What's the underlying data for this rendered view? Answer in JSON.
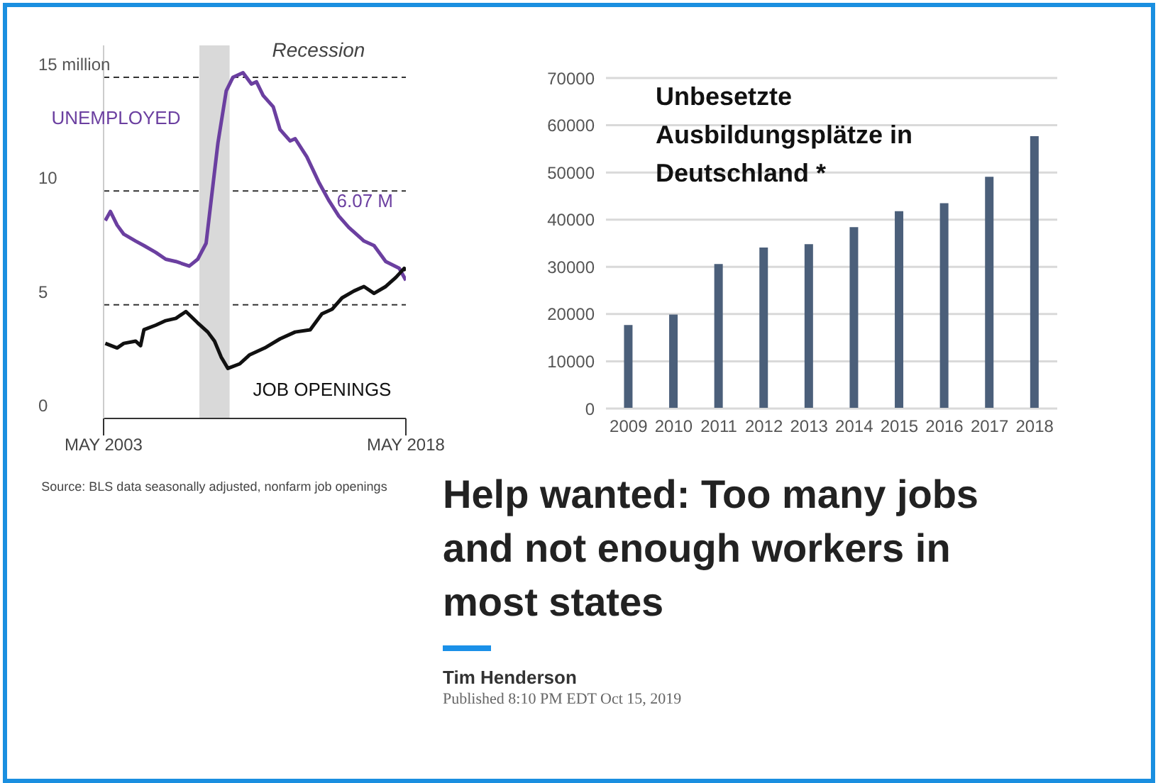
{
  "chart_data": [
    {
      "type": "line",
      "xlim": [
        "2003-05",
        "2018-05"
      ],
      "xticks": [
        {
          "value": "2003-05",
          "label": "MAY 2003"
        },
        {
          "value": "2018-05",
          "label": "MAY 2018"
        }
      ],
      "ylim": [
        0,
        16.4
      ],
      "yticks": [
        0,
        5,
        10,
        {
          "value": 15,
          "label": "15 million"
        }
      ],
      "grid": "y",
      "line_style": "solid",
      "series": [
        {
          "name": "UNEMPLOYED",
          "color": "#6b3fa0",
          "x": [
            "2003-06",
            "2003-09",
            "2004-01",
            "2004-05",
            "2004-12",
            "2005-05",
            "2005-12",
            "2006-06",
            "2006-12",
            "2007-08",
            "2008-01",
            "2008-06",
            "2008-09",
            "2009-01",
            "2009-06",
            "2009-10",
            "2010-04",
            "2010-09",
            "2010-12",
            "2011-04",
            "2011-10",
            "2012-02",
            "2012-08",
            "2012-11",
            "2013-06",
            "2014-01",
            "2014-07",
            "2015-01",
            "2015-07",
            "2016-04",
            "2016-10",
            "2017-05",
            "2018-01",
            "2018-05"
          ],
          "values": [
            8.7,
            9.1,
            8.5,
            8.1,
            7.8,
            7.6,
            7.3,
            7.0,
            6.9,
            6.7,
            7.0,
            7.7,
            9.6,
            12.1,
            14.4,
            15.0,
            15.2,
            14.7,
            14.8,
            14.2,
            13.7,
            12.7,
            12.2,
            12.3,
            11.5,
            10.4,
            9.6,
            8.9,
            8.4,
            7.8,
            7.6,
            6.9,
            6.6,
            6.07
          ]
        },
        {
          "name": "JOB OPENINGS",
          "color": "#111111",
          "x": [
            "2003-06",
            "2004-01",
            "2004-05",
            "2004-12",
            "2005-03",
            "2005-05",
            "2005-12",
            "2006-06",
            "2006-12",
            "2007-06",
            "2008-01",
            "2008-07",
            "2008-11",
            "2009-03",
            "2009-07",
            "2010-02",
            "2010-08",
            "2011-05",
            "2012-02",
            "2012-11",
            "2013-08",
            "2014-03",
            "2014-09",
            "2015-03",
            "2015-10",
            "2016-04",
            "2016-10",
            "2017-05",
            "2017-11",
            "2018-04",
            "2018-05"
          ],
          "values": [
            3.3,
            3.1,
            3.3,
            3.4,
            3.2,
            3.9,
            4.1,
            4.3,
            4.4,
            4.7,
            4.2,
            3.8,
            3.4,
            2.7,
            2.2,
            2.4,
            2.8,
            3.1,
            3.5,
            3.8,
            3.9,
            4.6,
            4.8,
            5.3,
            5.6,
            5.8,
            5.5,
            5.8,
            6.2,
            6.6,
            6.5
          ]
        }
      ],
      "bands": [
        {
          "axis": "x",
          "from": "2008-02",
          "to": "2009-08",
          "label": "Recession",
          "color": "#d9d9d9"
        }
      ],
      "annotations": [
        "6.07 M",
        "Source:  BLS data seasonally adjusted, nonfarm job openings"
      ]
    },
    {
      "type": "bar",
      "title": "Unbesetzte Ausbildungsplätze in Deutschland *",
      "categories": [
        "2009",
        "2010",
        "2011",
        "2012",
        "2013",
        "2014",
        "2015",
        "2016",
        "2017",
        "2018"
      ],
      "values": [
        17700,
        19900,
        30600,
        34100,
        34800,
        38400,
        41800,
        43500,
        49100,
        57700
      ],
      "color": "#4b5f7a",
      "ylim": [
        0,
        70000
      ],
      "yticks": [
        0,
        10000,
        20000,
        30000,
        40000,
        50000,
        60000,
        70000
      ],
      "grid": "y",
      "annotations": [
        "Help wanted: Too many jobs and not enough workers in most states",
        "Tim Henderson",
        "Published 8:10 PM EDT Oct 15, 2019"
      ]
    }
  ]
}
